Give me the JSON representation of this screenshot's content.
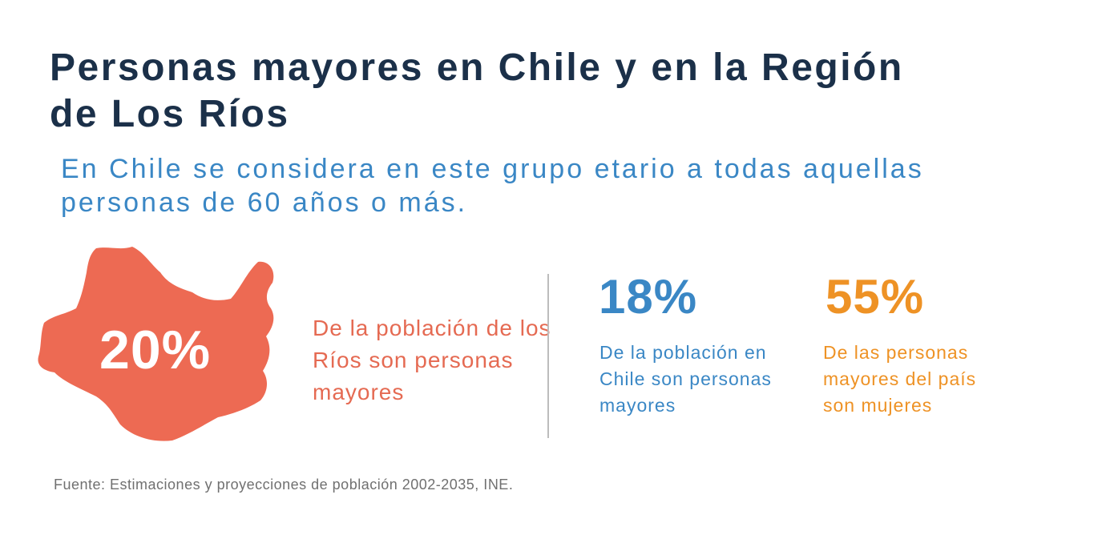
{
  "title": "Personas mayores en Chile y en la Región  de Los Ríos",
  "subtitle": "En Chile se considera en este grupo etario a todas aquellas personas de 60 años o más.",
  "region": {
    "percent": "20%",
    "description": "De la población de los Ríos son personas mayores",
    "color": "#ed6a53"
  },
  "chile": {
    "percent": "18%",
    "description": "De la población en Chile son personas mayores",
    "color": "#3a87c5"
  },
  "women": {
    "percent": "55%",
    "description": "De las personas mayores del país son mujeres",
    "color": "#ee9225"
  },
  "source": "Fuente: Estimaciones  y proyecciones de población  2002-2035,  INE."
}
